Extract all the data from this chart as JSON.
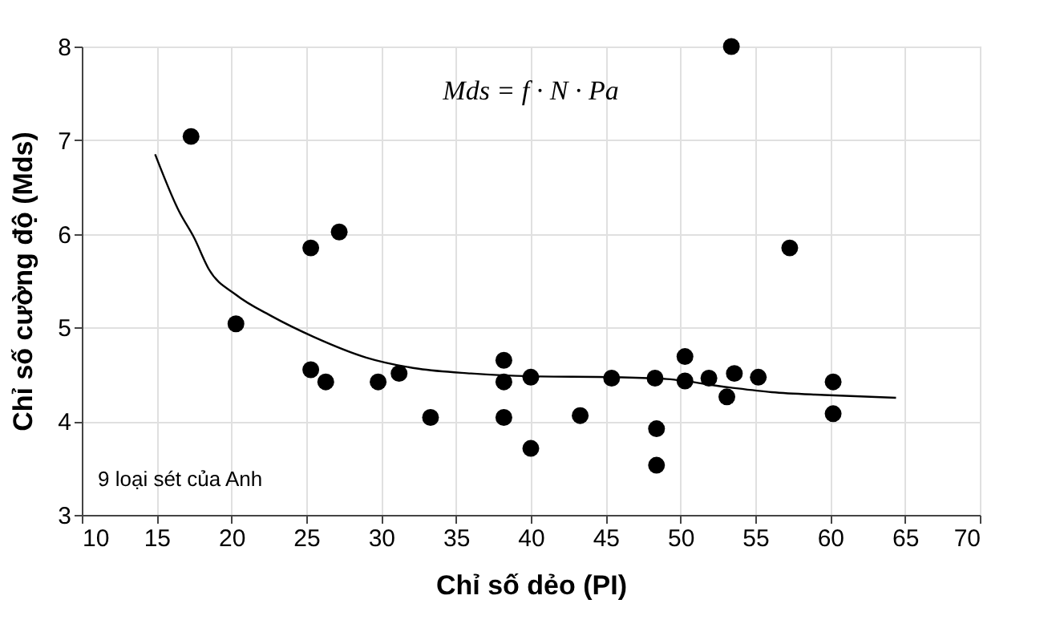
{
  "chart_data": {
    "type": "scatter",
    "xlabel": "Chỉ số dẻo (PI)",
    "ylabel": "Chỉ số cường độ (Mds)",
    "annotations": [
      "Mds = f · N · Pa",
      "9 loại sét của Anh"
    ],
    "xlim": [
      10,
      70
    ],
    "xticks": [
      10,
      15,
      20,
      25,
      30,
      35,
      40,
      45,
      50,
      55,
      60,
      65,
      70
    ],
    "ylim": [
      3,
      8
    ],
    "yticks": [
      3,
      4,
      5,
      6,
      7,
      8
    ],
    "grid": true,
    "series": [
      {
        "marker": "circle",
        "color": "#000000",
        "x": [
          17.3,
          20.3,
          25.3,
          27.2,
          25.3,
          26.3,
          29.8,
          31.2,
          33.3,
          38.2,
          38.2,
          38.2,
          40.0,
          40.0,
          43.3,
          45.4,
          48.3,
          48.4,
          48.4,
          50.3,
          50.3,
          51.9,
          53.1,
          53.6,
          55.2,
          53.4,
          57.3,
          60.2,
          60.2
        ],
        "values": [
          7.04,
          5.04,
          5.85,
          6.02,
          4.55,
          4.42,
          4.42,
          4.51,
          4.04,
          4.65,
          4.42,
          4.04,
          4.47,
          3.71,
          4.06,
          4.46,
          4.46,
          3.92,
          3.53,
          4.69,
          4.43,
          4.46,
          4.26,
          4.51,
          4.47,
          8.0,
          5.85,
          4.42,
          4.08
        ]
      },
      {
        "type": "line",
        "color": "#000000",
        "line_style": "solid",
        "x": [
          14.9,
          16.5,
          17.5,
          18.5,
          20.3,
          22.7,
          25.5,
          29.0,
          32.5,
          36.0,
          40.0,
          45.6,
          49.1,
          53.3,
          56.1,
          59.6,
          64.4
        ],
        "values": [
          6.85,
          6.24,
          5.96,
          5.62,
          5.35,
          5.12,
          4.9,
          4.68,
          4.56,
          4.51,
          4.48,
          4.47,
          4.45,
          4.36,
          4.31,
          4.28,
          4.25
        ]
      }
    ]
  }
}
